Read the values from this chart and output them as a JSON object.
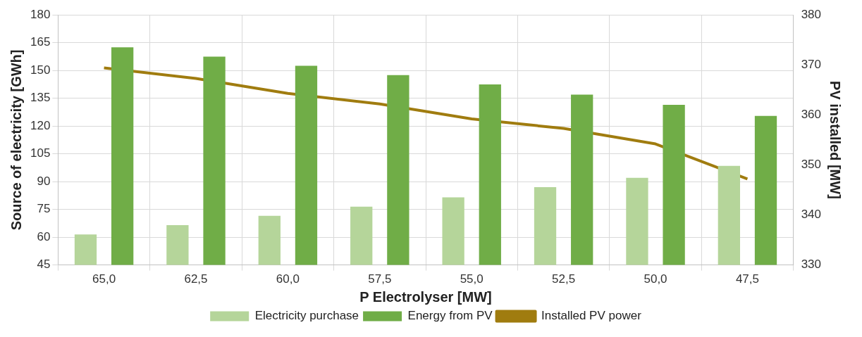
{
  "chart_data": {
    "type": "bar",
    "xlabel": "P Electrolyser [MW]",
    "ylabel": "Source of electricity [GWh]",
    "y2label": "PV installed [MW]",
    "categories": [
      "65,0",
      "62,5",
      "60,0",
      "57,5",
      "55,0",
      "52,5",
      "50,0",
      "47,5"
    ],
    "series": [
      {
        "name": "Electricity purchase",
        "color": "#b5d59a",
        "values": [
          61.5,
          66.5,
          71.5,
          76.5,
          81.5,
          87,
          92,
          98.5
        ]
      },
      {
        "name": "Energy from PV",
        "color": "#70ad47",
        "values": [
          162.5,
          157.5,
          152.5,
          147.5,
          142.5,
          137,
          131.5,
          125.5
        ]
      },
      {
        "name": "Installed PV power",
        "type": "line",
        "axis": "y2",
        "color": "#a07c0f",
        "values": [
          369.4,
          367.3,
          364.3,
          362.2,
          359.2,
          357.3,
          354.2,
          347.2
        ]
      }
    ],
    "ylim": [
      45,
      180
    ],
    "yticks": [
      45,
      60,
      75,
      90,
      105,
      120,
      135,
      150,
      165,
      180
    ],
    "y2lim": [
      330,
      380
    ],
    "y2ticks": [
      330,
      340,
      350,
      360,
      370,
      380
    ],
    "grid": true,
    "legend": "bottom",
    "marker": "none"
  }
}
